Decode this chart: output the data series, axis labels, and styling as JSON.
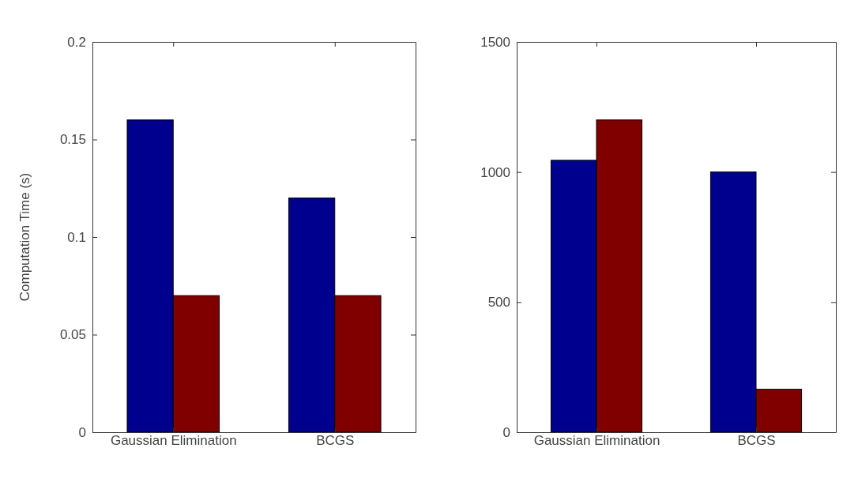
{
  "chart_data": [
    {
      "type": "bar",
      "ylabel": "Computation Time (s)",
      "categories": [
        "Gaussian Elimination",
        "BCGS"
      ],
      "series": [
        {
          "color": "#00008f",
          "values": [
            0.16,
            0.12
          ]
        },
        {
          "color": "#800000",
          "values": [
            0.07,
            0.07
          ]
        }
      ],
      "ylim": [
        0,
        0.2
      ],
      "yticks": [
        0,
        0.05,
        0.1,
        0.15,
        0.2
      ],
      "grid": false
    },
    {
      "type": "bar",
      "categories": [
        "Gaussian Elimination",
        "BCGS"
      ],
      "series": [
        {
          "color": "#00008f",
          "values": [
            1045,
            1000
          ]
        },
        {
          "color": "#800000",
          "values": [
            1200,
            165
          ]
        }
      ],
      "ylim": [
        0,
        1500
      ],
      "yticks": [
        0,
        500,
        1000,
        1500
      ],
      "grid": false
    }
  ]
}
